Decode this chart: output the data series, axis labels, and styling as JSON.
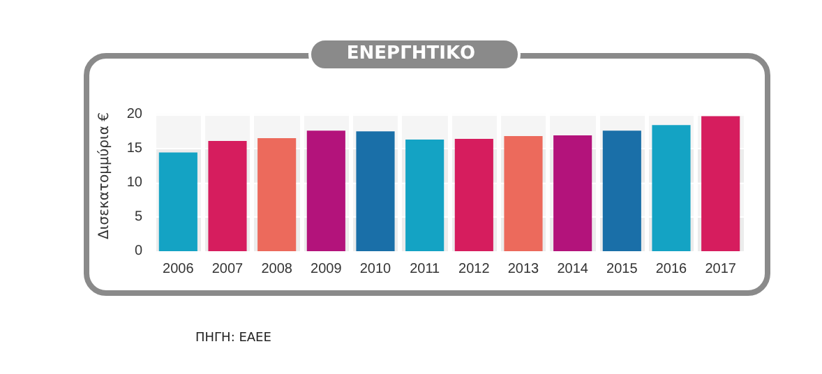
{
  "chart_data": {
    "type": "bar",
    "title": "ΕΝΕΡΓΗΤΙΚΟ",
    "ylabel": "Δισεκατομμύρια €",
    "categories": [
      "2006",
      "2007",
      "2008",
      "2009",
      "2010",
      "2011",
      "2012",
      "2013",
      "2014",
      "2015",
      "2016",
      "2017"
    ],
    "values": [
      14.4,
      16.1,
      16.5,
      17.6,
      17.5,
      16.3,
      16.4,
      16.8,
      16.9,
      17.6,
      18.4,
      19.7
    ],
    "colors": [
      "#14a3c4",
      "#d61d5e",
      "#ec6a5c",
      "#b3137b",
      "#1a6fa8",
      "#14a3c4",
      "#d61d5e",
      "#ec6a5c",
      "#b3137b",
      "#1a6fa8",
      "#14a3c4",
      "#d61d5e"
    ],
    "ylim": [
      0,
      22
    ],
    "yticks": [
      0,
      5,
      10,
      15,
      20
    ],
    "grid": "y",
    "annotations": [
      "ΠΗΓΗ: ΕΑΕΕ"
    ]
  }
}
